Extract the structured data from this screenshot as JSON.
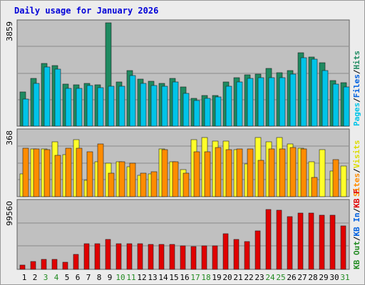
{
  "title": "Daily usage for January 2026",
  "colors": {
    "title": "#0000d8",
    "panel": "#c0c0c0",
    "hits": "#1e8a60",
    "files": "#00c4e8",
    "pages": "#0a3ad2",
    "visits": "#ffff2a",
    "sites": "#ff8c00",
    "kbf": "#e00000",
    "weekday_label": "#000000",
    "weekend_label": "#228b22"
  },
  "chart_data": [
    {
      "type": "bar",
      "categories": [
        "1",
        "2",
        "3",
        "4",
        "5",
        "6",
        "7",
        "8",
        "9",
        "10",
        "11",
        "12",
        "13",
        "14",
        "15",
        "16",
        "17",
        "18",
        "19",
        "20",
        "21",
        "22",
        "23",
        "24",
        "25",
        "26",
        "27",
        "28",
        "29",
        "30",
        "31"
      ],
      "weekend_days": [
        "3",
        "4",
        "10",
        "11",
        "17",
        "18",
        "24",
        "25",
        "31"
      ],
      "ymax_label": "3859",
      "ylim": [
        0,
        3859
      ],
      "legend": [
        {
          "name": "Hits",
          "color": "#1e8a60"
        },
        {
          "name": "Files",
          "color": "#0060e0"
        },
        {
          "name": "Pages",
          "color": "#00c4e8"
        }
      ],
      "separator": "/",
      "series": [
        {
          "name": "Hits",
          "values": [
            1270,
            1790,
            2350,
            2250,
            1560,
            1540,
            1610,
            1550,
            3859,
            1640,
            2070,
            1760,
            1680,
            1590,
            1770,
            1470,
            1050,
            1150,
            1150,
            1640,
            1800,
            1910,
            1950,
            2150,
            1990,
            2070,
            2750,
            2590,
            2370,
            1700,
            1620
          ]
        },
        {
          "name": "Files",
          "values": [
            1020,
            1600,
            2220,
            2120,
            1420,
            1400,
            1520,
            1450,
            1500,
            1490,
            1900,
            1600,
            1530,
            1480,
            1640,
            1230,
            970,
            1030,
            1090,
            1480,
            1660,
            1780,
            1820,
            1800,
            1820,
            1940,
            2550,
            2510,
            2080,
            1560,
            1470
          ]
        },
        {
          "name": "Pages",
          "values": [
            0,
            0,
            0,
            0,
            0,
            0,
            0,
            0,
            0,
            0,
            0,
            0,
            0,
            0,
            0,
            0,
            0,
            0,
            0,
            0,
            0,
            0,
            0,
            0,
            0,
            0,
            0,
            0,
            0,
            0,
            0
          ]
        }
      ]
    },
    {
      "type": "bar",
      "categories": [
        "1",
        "2",
        "3",
        "4",
        "5",
        "6",
        "7",
        "8",
        "9",
        "10",
        "11",
        "12",
        "13",
        "14",
        "15",
        "16",
        "17",
        "18",
        "19",
        "20",
        "21",
        "22",
        "23",
        "24",
        "25",
        "26",
        "27",
        "28",
        "29",
        "30",
        "31"
      ],
      "ymax_label": "368",
      "ylim": [
        0,
        368
      ],
      "legend": [
        {
          "name": "Visits",
          "color": "#dcdc00"
        },
        {
          "name": "Sites",
          "color": "#ff8c00"
        }
      ],
      "separator": "/",
      "series": [
        {
          "name": "Visits",
          "values": [
            130,
            270,
            270,
            310,
            240,
            325,
            95,
            200,
            190,
            200,
            170,
            120,
            130,
            270,
            200,
            155,
            325,
            335,
            315,
            315,
            265,
            185,
            335,
            310,
            335,
            300,
            275,
            200,
            265,
            145,
            175
          ]
        },
        {
          "name": "Sites",
          "values": [
            275,
            270,
            265,
            235,
            275,
            275,
            255,
            300,
            135,
            200,
            190,
            135,
            140,
            265,
            200,
            135,
            255,
            255,
            280,
            265,
            270,
            270,
            205,
            270,
            270,
            280,
            270,
            110,
            0,
            210,
            0
          ]
        }
      ]
    },
    {
      "type": "bar",
      "categories": [
        "1",
        "2",
        "3",
        "4",
        "5",
        "6",
        "7",
        "8",
        "9",
        "10",
        "11",
        "12",
        "13",
        "14",
        "15",
        "16",
        "17",
        "18",
        "19",
        "20",
        "21",
        "22",
        "23",
        "24",
        "25",
        "26",
        "27",
        "28",
        "29",
        "30",
        "31"
      ],
      "ymax_label": "99560",
      "ylim": [
        0,
        99560
      ],
      "legend": [
        {
          "name": "KB F",
          "color": "#e00000"
        },
        {
          "name": "KB In",
          "color": "#0060e0"
        },
        {
          "name": "KB Out",
          "color": "#228b22"
        }
      ],
      "separator": "/",
      "series": [
        {
          "name": "KB F",
          "values": [
            6100,
            11900,
            15100,
            15000,
            10800,
            22600,
            38500,
            38500,
            45000,
            38500,
            38500,
            38500,
            36900,
            36900,
            36900,
            35300,
            33700,
            35300,
            35300,
            52900,
            45000,
            41600,
            57000,
            89300,
            87700,
            78200,
            83500,
            83500,
            81000,
            81000,
            64800
          ]
        },
        {
          "name": "KB In",
          "values": [
            0,
            0,
            0,
            0,
            0,
            0,
            0,
            0,
            0,
            0,
            0,
            0,
            0,
            0,
            0,
            0,
            0,
            0,
            0,
            0,
            0,
            0,
            0,
            0,
            0,
            0,
            0,
            0,
            0,
            0,
            0
          ]
        },
        {
          "name": "KB Out",
          "values": [
            0,
            0,
            0,
            0,
            0,
            0,
            0,
            0,
            0,
            0,
            0,
            0,
            0,
            0,
            0,
            0,
            0,
            0,
            0,
            0,
            0,
            0,
            0,
            0,
            0,
            0,
            0,
            0,
            0,
            0,
            0
          ]
        }
      ]
    }
  ]
}
